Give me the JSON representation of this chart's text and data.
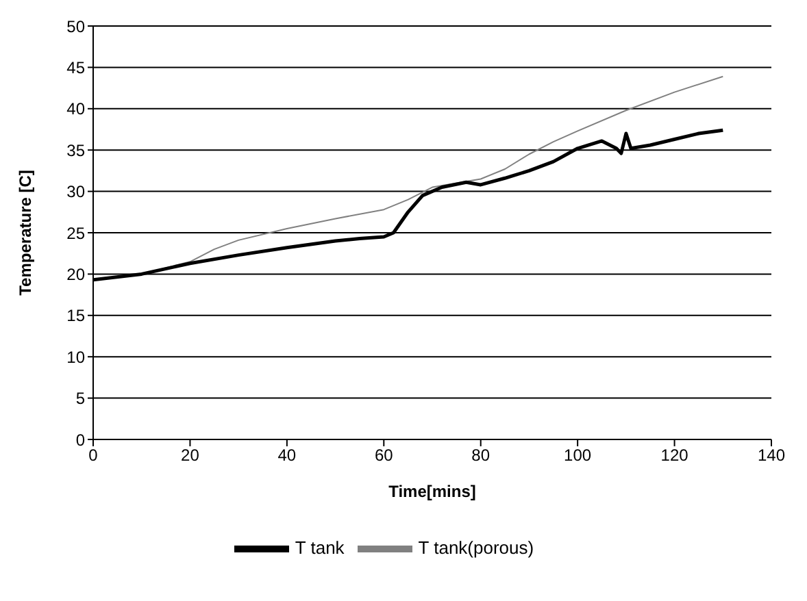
{
  "chart_data": {
    "type": "line",
    "xlabel": "Time[mins]",
    "ylabel": "Temperature [C]",
    "xlim": [
      0,
      140
    ],
    "xticks": [
      0,
      20,
      40,
      60,
      80,
      100,
      120,
      140
    ],
    "ylim": [
      0,
      50
    ],
    "yticks": [
      0,
      5,
      10,
      15,
      20,
      25,
      30,
      35,
      40,
      45,
      50
    ],
    "grid": "y",
    "legend": "bottom",
    "marker": "none",
    "series": [
      {
        "name": "T tank(porous)",
        "color": "#808080",
        "x": [
          0,
          10,
          20,
          25,
          30,
          40,
          50,
          60,
          65,
          70,
          80,
          85,
          90,
          95,
          100,
          110,
          120,
          130
        ],
        "values": [
          19.3,
          20,
          21.5,
          23,
          24.1,
          25.5,
          26.7,
          27.8,
          29,
          30.5,
          31.5,
          32.7,
          34.5,
          36,
          37.3,
          39.8,
          42,
          43.9
        ]
      },
      {
        "name": "T tank",
        "color": "#000000",
        "x": [
          0,
          10,
          20,
          30,
          40,
          50,
          55,
          60,
          62,
          65,
          68,
          72,
          77,
          80,
          85,
          90,
          95,
          100,
          105,
          108,
          109,
          110,
          111,
          115,
          120,
          125,
          130
        ],
        "values": [
          19.3,
          20,
          21.3,
          22.3,
          23.2,
          24,
          24.3,
          24.5,
          25,
          27.5,
          29.5,
          30.5,
          31.1,
          30.8,
          31.6,
          32.5,
          33.6,
          35.2,
          36.1,
          35.2,
          34.6,
          37,
          35.2,
          35.6,
          36.3,
          37,
          37.4
        ]
      }
    ]
  }
}
